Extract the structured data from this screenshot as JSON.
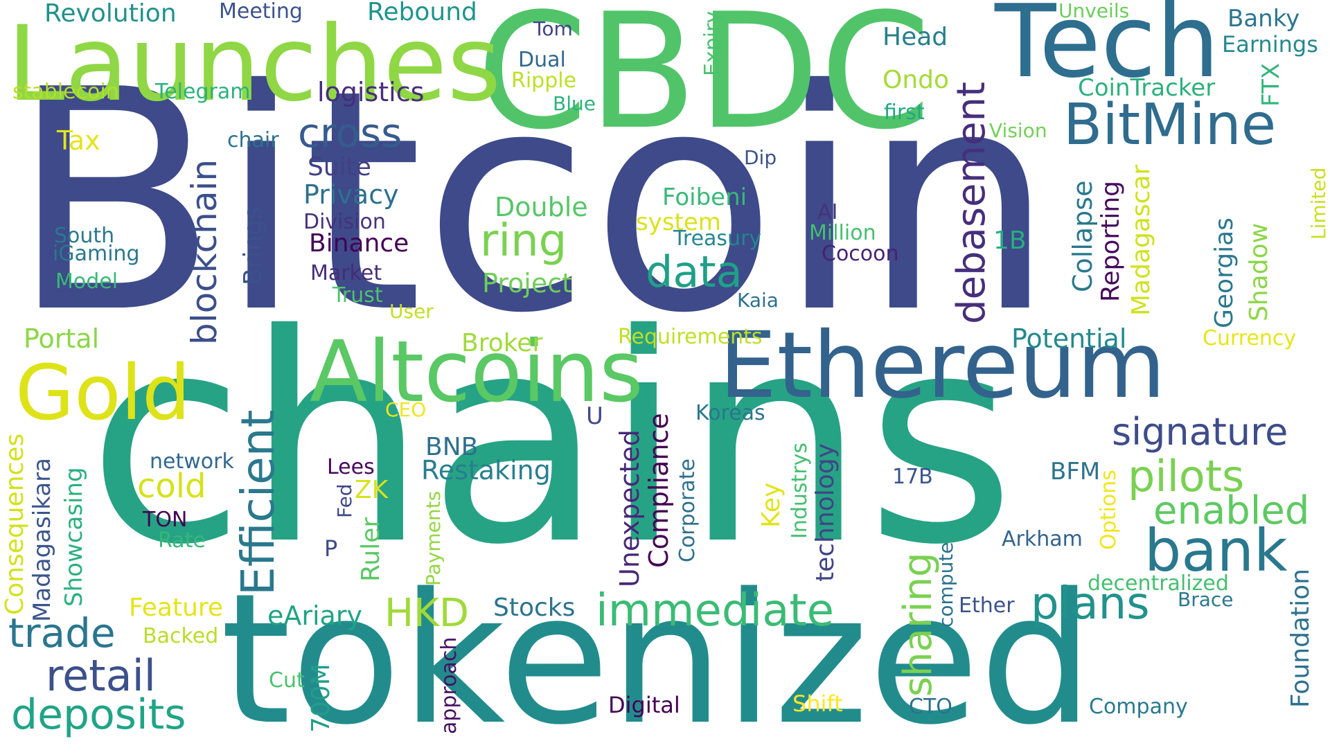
{
  "words": [
    {
      "text": "Bitcoin",
      "color": "#3e4a89"
    },
    {
      "text": "chains",
      "color": "#26a384"
    },
    {
      "text": "tokenized",
      "color": "#228c8d"
    },
    {
      "text": "CBDC",
      "color": "#51c46a"
    },
    {
      "text": "Launches",
      "color": "#8fd744"
    },
    {
      "text": "Tech",
      "color": "#2e6e8e"
    },
    {
      "text": "Ethereum",
      "color": "#33638d"
    },
    {
      "text": "Altcoins",
      "color": "#5ac864"
    },
    {
      "text": "BitMine",
      "color": "#2f6c8e"
    },
    {
      "text": "Gold",
      "color": "#dde318"
    },
    {
      "text": "bank",
      "color": "#29788e"
    },
    {
      "text": "Efficient",
      "color": "#2a788e"
    },
    {
      "text": "blockchain",
      "color": "#3c4f8a"
    },
    {
      "text": "debasement",
      "color": "#472e7c"
    },
    {
      "text": "immediate",
      "color": "#3bbb75"
    },
    {
      "text": "sharing",
      "color": "#7ad151"
    },
    {
      "text": "pilots",
      "color": "#7ad151"
    },
    {
      "text": "signature",
      "color": "#3e4c8a"
    },
    {
      "text": "enabled",
      "color": "#5ec962"
    },
    {
      "text": "plans",
      "color": "#20928c"
    },
    {
      "text": "deposits",
      "color": "#20a486"
    },
    {
      "text": "retail",
      "color": "#3c508b"
    },
    {
      "text": "trade",
      "color": "#2a768e"
    },
    {
      "text": "HKD",
      "color": "#a0da39"
    },
    {
      "text": "data",
      "color": "#1fa088"
    },
    {
      "text": "ring",
      "color": "#7ad151"
    },
    {
      "text": "cross",
      "color": "#365c8d"
    },
    {
      "text": "cold",
      "color": "#d5e21a"
    },
    {
      "text": "Revolution",
      "color": "#21918c"
    },
    {
      "text": "Meeting",
      "color": "#3b528b"
    },
    {
      "text": "Rebound",
      "color": "#1f948c"
    },
    {
      "text": "Tom",
      "color": "#404387"
    },
    {
      "text": "Dual",
      "color": "#31688e"
    },
    {
      "text": "Ripple",
      "color": "#bddf26"
    },
    {
      "text": "Blue",
      "color": "#2db27d"
    },
    {
      "text": "Expiry",
      "color": "#4ac16d"
    },
    {
      "text": "Head",
      "color": "#277f8e"
    },
    {
      "text": "Ondo",
      "color": "#a5db36"
    },
    {
      "text": "first",
      "color": "#22a785"
    },
    {
      "text": "Unveils",
      "color": "#6ccd5a"
    },
    {
      "text": "Banky",
      "color": "#2b758e"
    },
    {
      "text": "Earnings",
      "color": "#23898e"
    },
    {
      "text": "FTX",
      "color": "#31b57b"
    },
    {
      "text": "CoinTracker",
      "color": "#2ab07f"
    },
    {
      "text": "Vision",
      "color": "#73d056"
    },
    {
      "text": "stablecoin",
      "color": "#b5de2b"
    },
    {
      "text": "Telegram",
      "color": "#2cb17e"
    },
    {
      "text": "logistics",
      "color": "#472d7b"
    },
    {
      "text": "chair",
      "color": "#2c728e"
    },
    {
      "text": "Tax",
      "color": "#e5e419"
    },
    {
      "text": "Suite",
      "color": "#424086"
    },
    {
      "text": "Privacy",
      "color": "#2c718e"
    },
    {
      "text": "Division",
      "color": "#46327e"
    },
    {
      "text": "Binance",
      "color": "#440256"
    },
    {
      "text": "Market",
      "color": "#472c7a"
    },
    {
      "text": "Trust",
      "color": "#4ec36b"
    },
    {
      "text": "User",
      "color": "#c2df23"
    },
    {
      "text": "South",
      "color": "#2a788e"
    },
    {
      "text": "iGaming",
      "color": "#2a778e"
    },
    {
      "text": "Model",
      "color": "#38b977"
    },
    {
      "text": "Brings",
      "color": "#3b518b"
    },
    {
      "text": "Double",
      "color": "#56c667"
    },
    {
      "text": "system",
      "color": "#dae319"
    },
    {
      "text": "Foibeni",
      "color": "#38b977"
    },
    {
      "text": "Treasury",
      "color": "#24868e"
    },
    {
      "text": "Project",
      "color": "#6ece58"
    },
    {
      "text": "Dip",
      "color": "#3b528b"
    },
    {
      "text": "AI",
      "color": "#46327e"
    },
    {
      "text": "Million",
      "color": "#44bf70"
    },
    {
      "text": "Cocoon",
      "color": "#482173"
    },
    {
      "text": "Kaia",
      "color": "#2d708e"
    },
    {
      "text": "1B",
      "color": "#27ad81"
    },
    {
      "text": "Collapse",
      "color": "#2a788e"
    },
    {
      "text": "Reporting",
      "color": "#460a5d"
    },
    {
      "text": "Madagascar",
      "color": "#d0e11c"
    },
    {
      "text": "Georgias",
      "color": "#2a778e"
    },
    {
      "text": "Shadow",
      "color": "#8bd646"
    },
    {
      "text": "Limited",
      "color": "#c8e020"
    },
    {
      "text": "Potential",
      "color": "#23898e"
    },
    {
      "text": "Currency",
      "color": "#e7e419"
    },
    {
      "text": "Portal",
      "color": "#8bd646"
    },
    {
      "text": "Broker",
      "color": "#a0da39"
    },
    {
      "text": "Requirements",
      "color": "#c0df25"
    },
    {
      "text": "CEO",
      "color": "#f1e51d"
    },
    {
      "text": "Koreas",
      "color": "#2a768e"
    },
    {
      "text": "U",
      "color": "#3e4a89"
    },
    {
      "text": "Consequences",
      "color": "#d2e21b"
    },
    {
      "text": "Madagasikara",
      "color": "#3a548c"
    },
    {
      "text": "Showcasing",
      "color": "#2ab07f"
    },
    {
      "text": "network",
      "color": "#31688e"
    },
    {
      "text": "TON",
      "color": "#440154"
    },
    {
      "text": "Rate",
      "color": "#35b779"
    },
    {
      "text": "BNB",
      "color": "#2e6f8e"
    },
    {
      "text": "Restaking",
      "color": "#277f8e"
    },
    {
      "text": "Lees",
      "color": "#46085c"
    },
    {
      "text": "Fed",
      "color": "#3f4889"
    },
    {
      "text": "ZK",
      "color": "#d8e219"
    },
    {
      "text": "Payments",
      "color": "#93d741"
    },
    {
      "text": "Ruler",
      "color": "#5ac864"
    },
    {
      "text": "P",
      "color": "#3e4989"
    },
    {
      "text": "Unexpected",
      "color": "#482878"
    },
    {
      "text": "Compliance",
      "color": "#440154"
    },
    {
      "text": "Corporate",
      "color": "#2e6f8e"
    },
    {
      "text": "Key",
      "color": "#e2e418"
    },
    {
      "text": "Industrys",
      "color": "#44bf70"
    },
    {
      "text": "technology",
      "color": "#414487"
    },
    {
      "text": "17B",
      "color": "#39558c"
    },
    {
      "text": "BFM",
      "color": "#2c728e"
    },
    {
      "text": "Options",
      "color": "#f1e51d"
    },
    {
      "text": "Arkham",
      "color": "#32648e"
    },
    {
      "text": "Foundation",
      "color": "#2d708e"
    },
    {
      "text": "decentralized",
      "color": "#44bf70"
    },
    {
      "text": "Brace",
      "color": "#2a788e"
    },
    {
      "text": "Ether",
      "color": "#3b528b"
    },
    {
      "text": "compute",
      "color": "#2c728e"
    },
    {
      "text": "Feature",
      "color": "#e5e419"
    },
    {
      "text": "Backed",
      "color": "#b8de29"
    },
    {
      "text": "eAriary",
      "color": "#20a386"
    },
    {
      "text": "Stocks",
      "color": "#2b748e"
    },
    {
      "text": "Cut",
      "color": "#4ac16d"
    },
    {
      "text": "700M",
      "color": "#1f9e89"
    },
    {
      "text": "approach",
      "color": "#471063"
    },
    {
      "text": "Digital",
      "color": "#440154"
    },
    {
      "text": "Shift",
      "color": "#fde725"
    },
    {
      "text": "CTO",
      "color": "#2d708e"
    },
    {
      "text": "Company",
      "color": "#2a788e"
    },
    {
      "text": "e",
      "color": "#3b528b"
    }
  ]
}
